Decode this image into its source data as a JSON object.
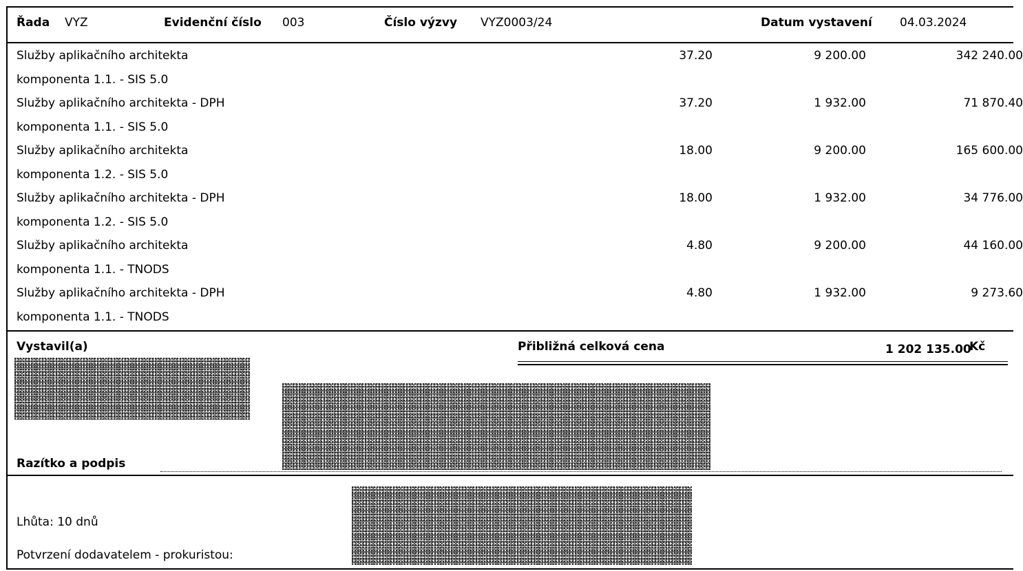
{
  "header": {
    "rada_label": "Řada",
    "rada_value": "VYZ",
    "evidencni_label": "Evidenční číslo",
    "evidencni_value": "003",
    "cislo_vyzvy_label": "Číslo výzvy",
    "cislo_vyzvy_value": "VYZ0003/24",
    "datum_label": "Datum vystavení",
    "datum_value": "04.03.2024"
  },
  "items": [
    {
      "desc": "Služby aplikačního architekta",
      "qty": "37.20",
      "price": "9 200.00",
      "total": "342 240.00"
    },
    {
      "desc": "komponenta 1.1. - SIS 5.0",
      "qty": "",
      "price": "",
      "total": ""
    },
    {
      "desc": "Služby aplikačního architekta - DPH",
      "qty": "37.20",
      "price": "1 932.00",
      "total": "71 870.40"
    },
    {
      "desc": "komponenta 1.1. - SIS 5.0",
      "qty": "",
      "price": "",
      "total": ""
    },
    {
      "desc": "Služby aplikačního architekta",
      "qty": "18.00",
      "price": "9 200.00",
      "total": "165 600.00"
    },
    {
      "desc": "komponenta 1.2. - SIS 5.0",
      "qty": "",
      "price": "",
      "total": ""
    },
    {
      "desc": "Služby aplikačního architekta - DPH",
      "qty": "18.00",
      "price": "1 932.00",
      "total": "34 776.00"
    },
    {
      "desc": "komponenta 1.2. - SIS 5.0",
      "qty": "",
      "price": "",
      "total": ""
    },
    {
      "desc": "Služby aplikačního architekta",
      "qty": "4.80",
      "price": "9 200.00",
      "total": "44 160.00"
    },
    {
      "desc": "komponenta 1.1. - TNODS",
      "qty": "",
      "price": "",
      "total": ""
    },
    {
      "desc": "Služby aplikačního architekta - DPH",
      "qty": "4.80",
      "price": "1 932.00",
      "total": "9 273.60"
    },
    {
      "desc": "komponenta 1.1. - TNODS",
      "qty": "",
      "price": "",
      "total": ""
    }
  ],
  "footer": {
    "vystavil_label": "Vystavil(a)",
    "celkova_cena_label": "Přibližná celková cena",
    "celkova_cena_value": "1 202 135.00",
    "currency": "Kč",
    "razitko_label": "Razítko a podpis",
    "lhuta": "Lhůta: 10 dnů",
    "potvrzeni": "Potvrzení dodavatelem - prokuristou:"
  }
}
